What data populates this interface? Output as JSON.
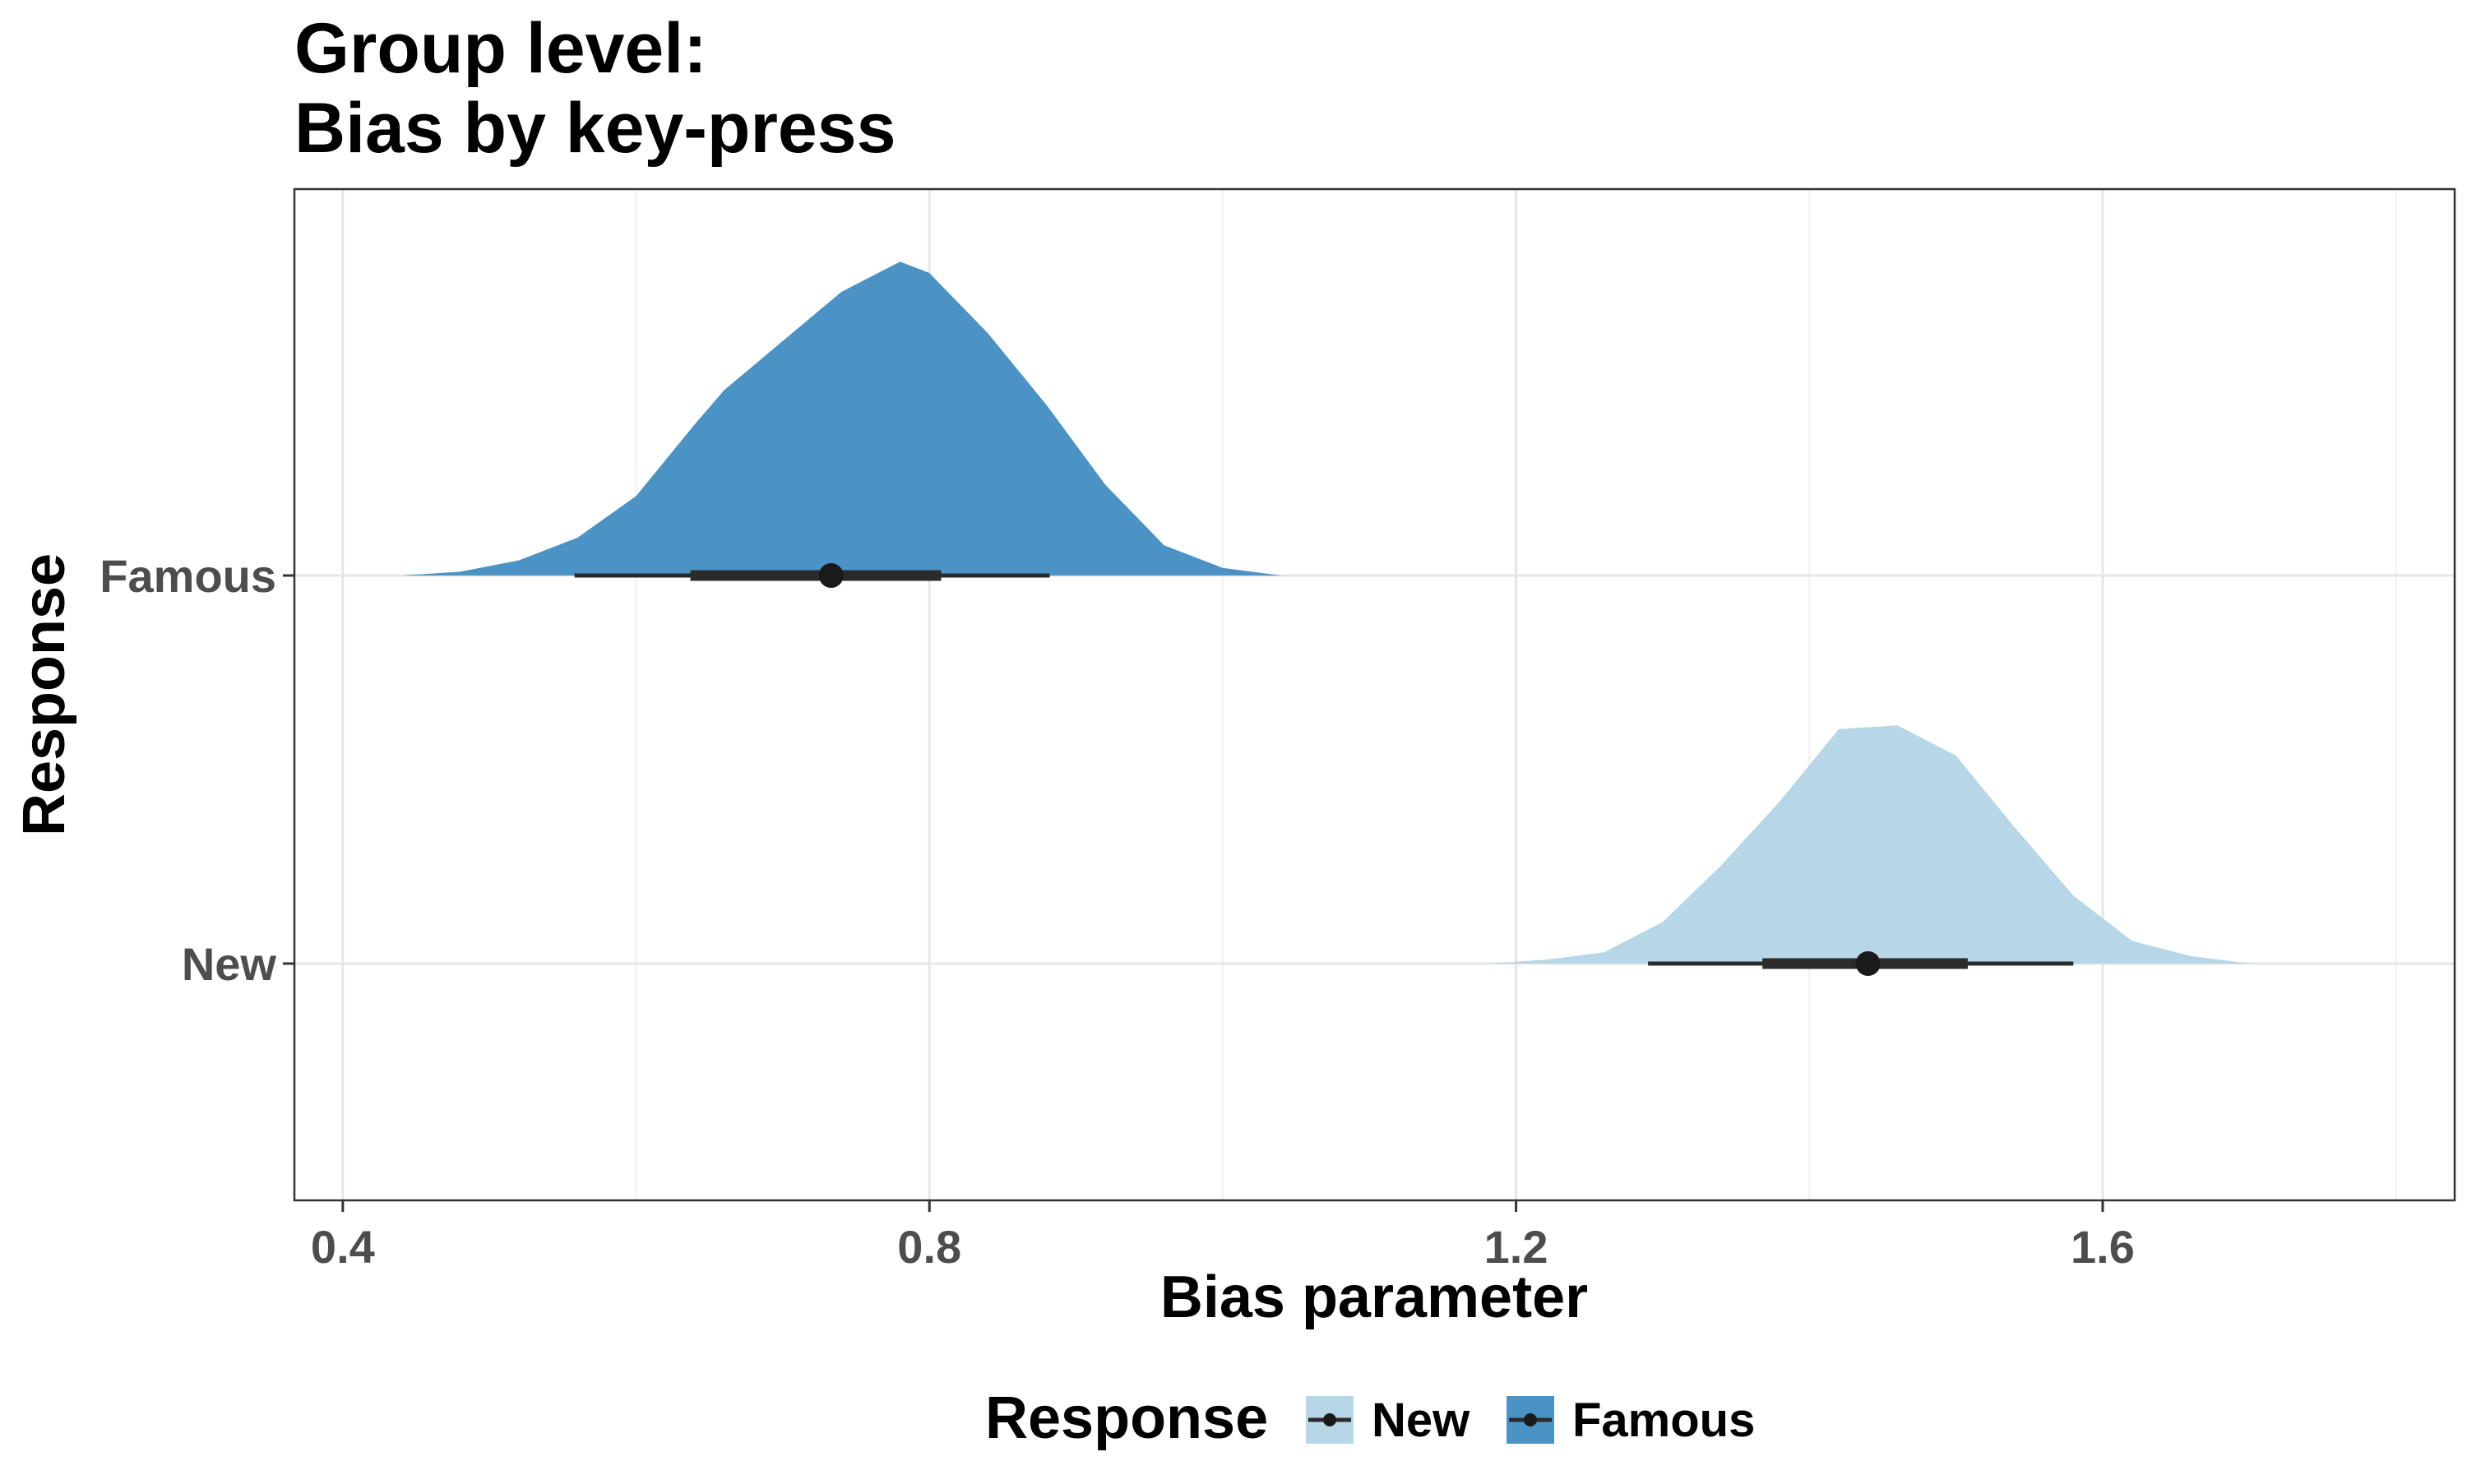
{
  "chart_data": {
    "type": "area",
    "title": [
      "Group level:",
      "Bias by key-press"
    ],
    "xlabel": "Bias parameter",
    "ylabel": "Response",
    "xlim": [
      0.367,
      1.84
    ],
    "x_ticks": [
      0.4,
      0.8,
      1.2,
      1.6
    ],
    "x_tick_labels": [
      "0.4",
      "0.8",
      "1.2",
      "1.6"
    ],
    "categories": [
      "New",
      "Famous"
    ],
    "grid": true,
    "legend": {
      "title": "Response",
      "position": "bottom",
      "entries": [
        "New",
        "Famous"
      ]
    },
    "series": [
      {
        "name": "Famous",
        "color": "#4b93c5",
        "point_estimate": 0.733,
        "interval_66": [
          0.637,
          0.808
        ],
        "interval_95": [
          0.558,
          0.882
        ],
        "density": [
          [
            0.44,
            0.0
          ],
          [
            0.48,
            0.01
          ],
          [
            0.52,
            0.04
          ],
          [
            0.56,
            0.1
          ],
          [
            0.6,
            0.21
          ],
          [
            0.64,
            0.4
          ],
          [
            0.66,
            0.49
          ],
          [
            0.7,
            0.62
          ],
          [
            0.74,
            0.75
          ],
          [
            0.78,
            0.83
          ],
          [
            0.8,
            0.8
          ],
          [
            0.84,
            0.64
          ],
          [
            0.88,
            0.45
          ],
          [
            0.92,
            0.24
          ],
          [
            0.96,
            0.08
          ],
          [
            1.0,
            0.02
          ],
          [
            1.04,
            0.0
          ]
        ]
      },
      {
        "name": "New",
        "color": "#b7d7e8",
        "point_estimate": 1.44,
        "interval_66": [
          1.368,
          1.508
        ],
        "interval_95": [
          1.29,
          1.58
        ],
        "density": [
          [
            1.18,
            0.0
          ],
          [
            1.22,
            0.01
          ],
          [
            1.26,
            0.03
          ],
          [
            1.3,
            0.11
          ],
          [
            1.34,
            0.26
          ],
          [
            1.38,
            0.43
          ],
          [
            1.42,
            0.62
          ],
          [
            1.46,
            0.63
          ],
          [
            1.5,
            0.55
          ],
          [
            1.54,
            0.36
          ],
          [
            1.58,
            0.18
          ],
          [
            1.62,
            0.06
          ],
          [
            1.66,
            0.02
          ],
          [
            1.7,
            0.0
          ],
          [
            1.76,
            0.0
          ]
        ]
      }
    ]
  }
}
